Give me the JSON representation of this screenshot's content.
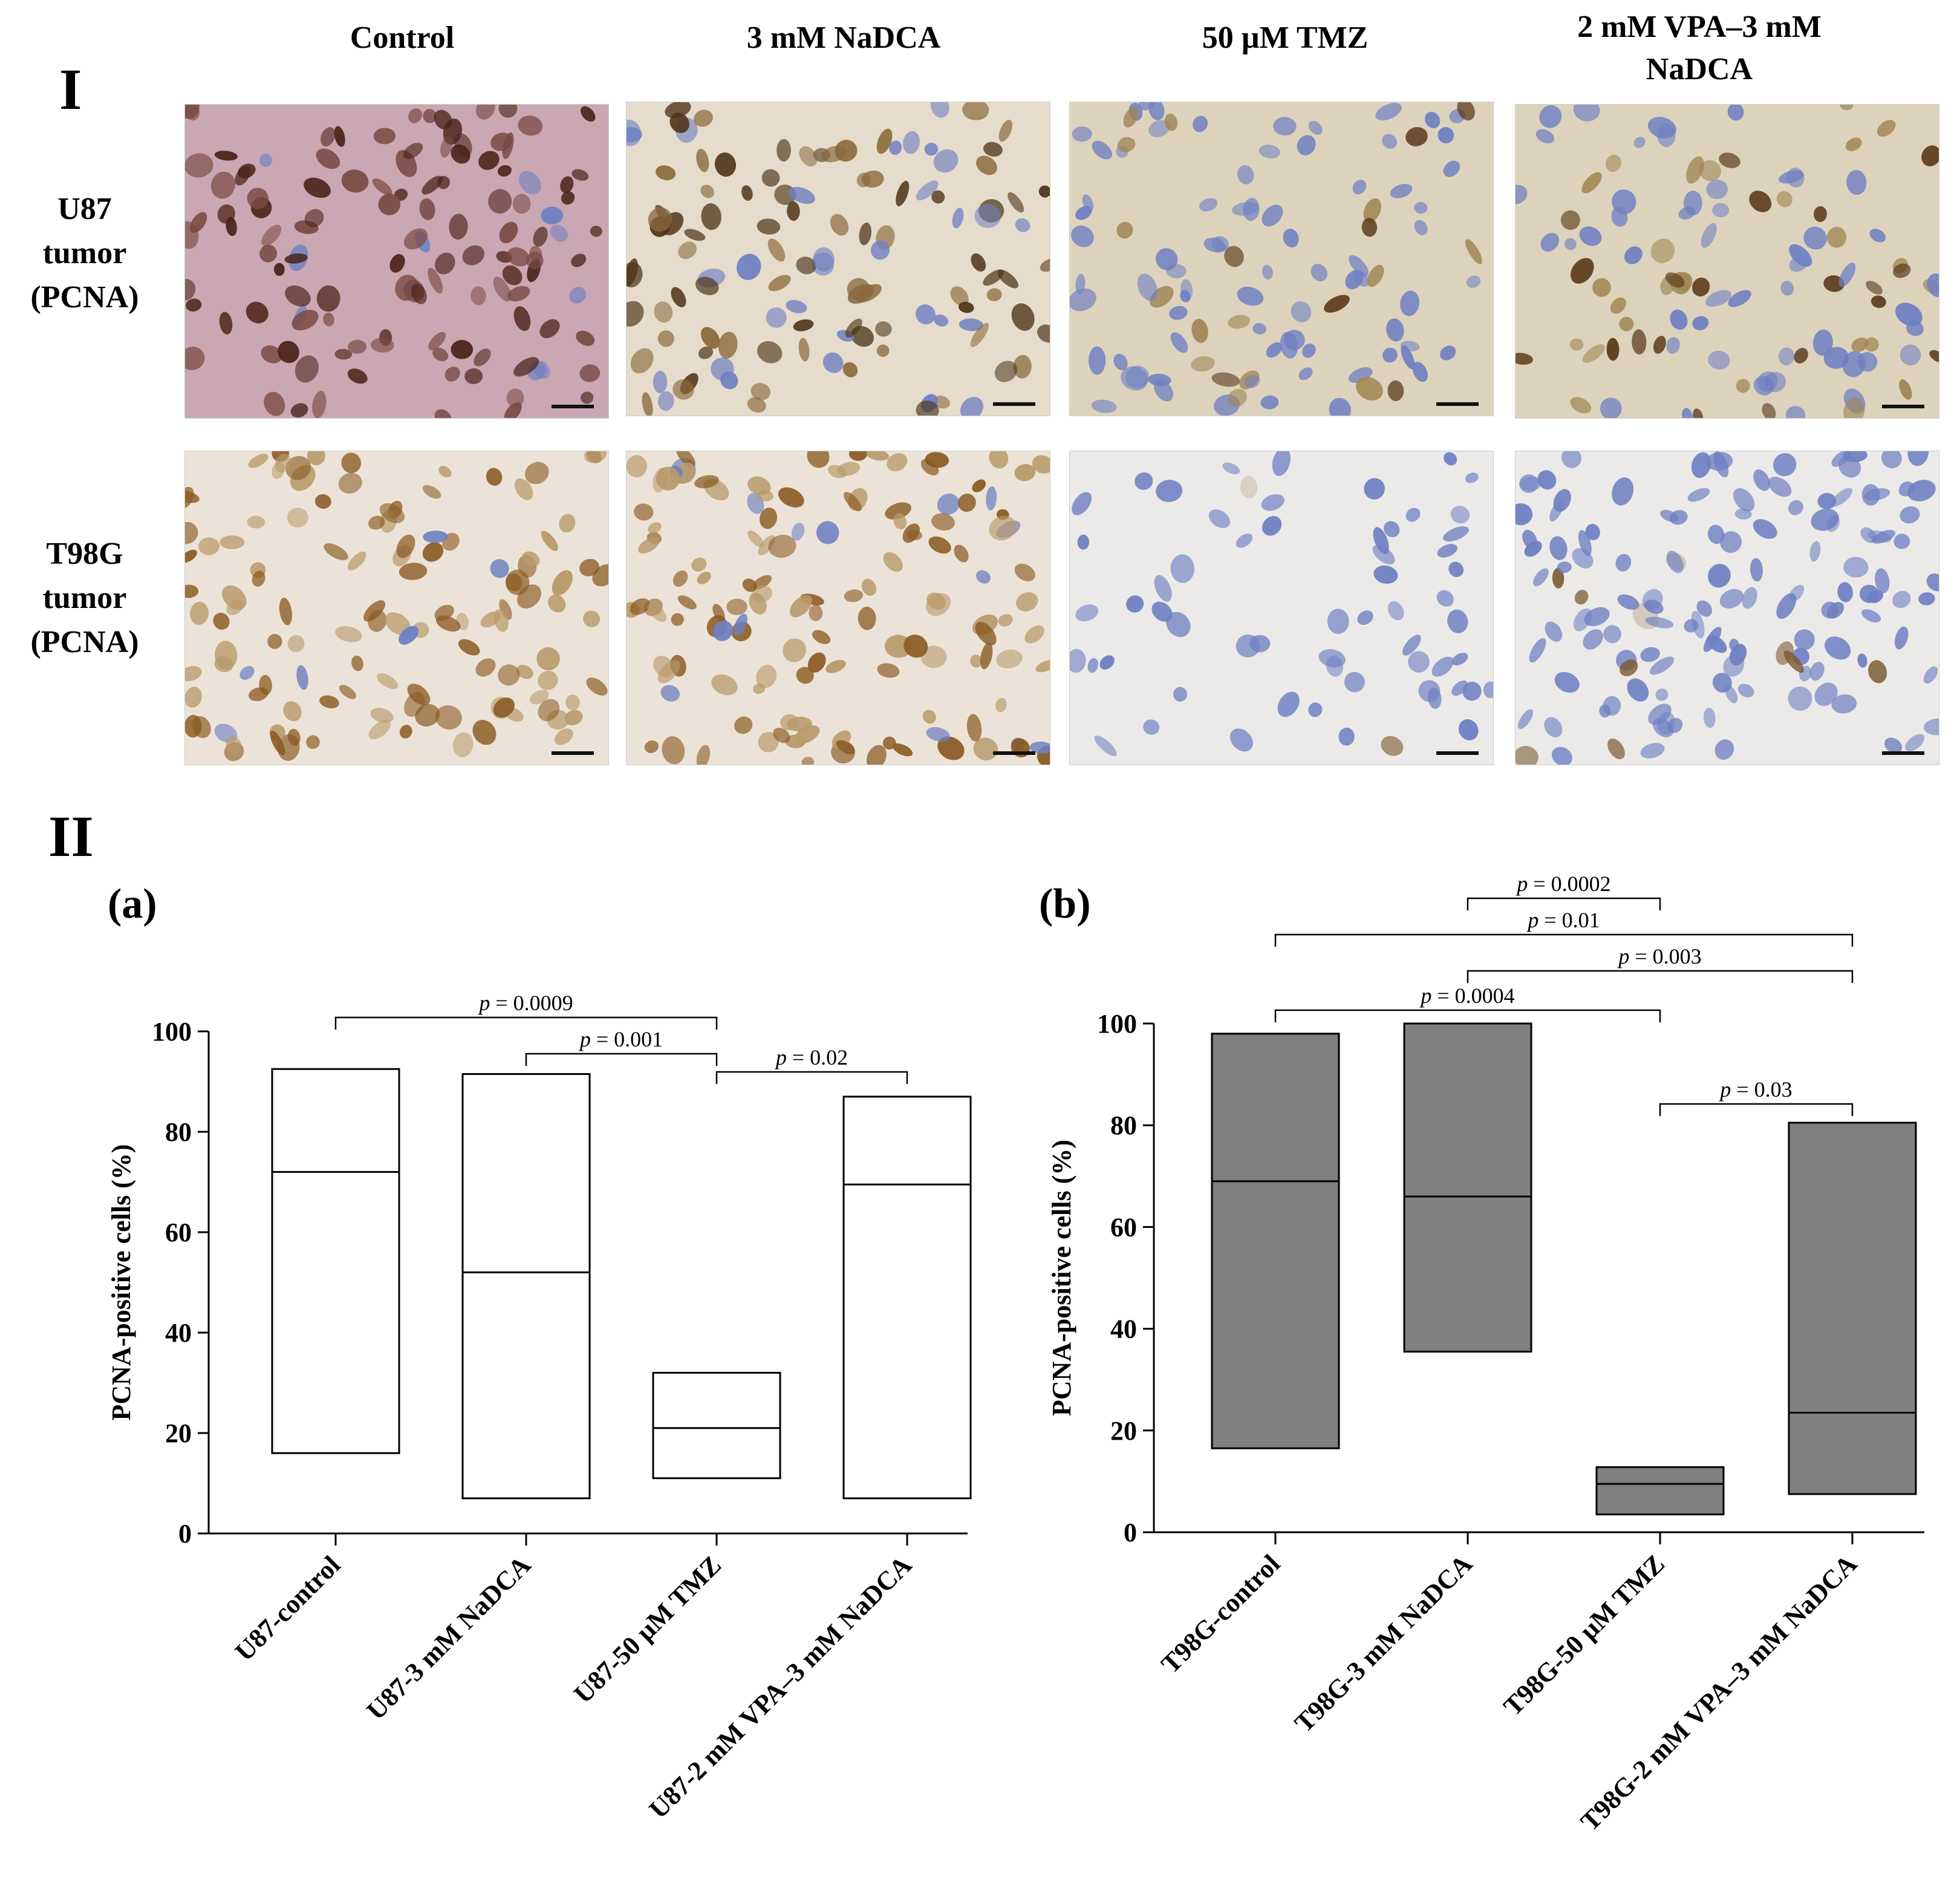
{
  "figure": {
    "section_I": "I",
    "section_II": "II",
    "column_headers": [
      "Control",
      "3 mM NaDCA",
      "50 µM TMZ",
      "2 mM VPA–3 mM NaDCA"
    ],
    "row_labels": [
      {
        "line1": "U87",
        "line2": "tumor",
        "line3": "(PCNA)"
      },
      {
        "line1": "T98G",
        "line2": "tumor",
        "line3": "(PCNA)"
      }
    ],
    "colors": {
      "u87_tissue_bg": "#c9a7b3",
      "u87_nuclei": "#4a2418",
      "t98g_tissue_bg": "#ece3d8",
      "t98g_nuclei": "#8a5a22",
      "hematoxylin_blue": "#6e7fc2",
      "box_fill_a": "#ffffff",
      "box_fill_b": "#808080"
    }
  },
  "chart_data": [
    {
      "panel_label": "(a)",
      "type": "box",
      "fill": "#ffffff",
      "ylabel": "PCNA-positive cells (%)",
      "ylim": [
        0,
        100
      ],
      "yticks": [
        "0",
        "20",
        "40",
        "60",
        "80",
        "100"
      ],
      "categories": [
        "U87-control",
        "U87-3 mM NaDCA",
        "U87-50 µM TMZ",
        "U87-2 mM VPA–3 mM NaDCA"
      ],
      "boxes": [
        {
          "min": 16,
          "median": 72,
          "max": 92.5
        },
        {
          "min": 7,
          "median": 52,
          "max": 91.5
        },
        {
          "min": 11,
          "median": 21,
          "max": 32
        },
        {
          "min": 7,
          "median": 69.5,
          "max": 87
        }
      ],
      "comparisons": [
        {
          "from": 0,
          "to": 2,
          "text_p": "p",
          "text_val": " = 0.0009"
        },
        {
          "from": 1,
          "to": 2,
          "text_p": "p",
          "text_val": " = 0.001"
        },
        {
          "from": 2,
          "to": 3,
          "text_p": "p",
          "text_val": " = 0.02"
        }
      ]
    },
    {
      "panel_label": "(b)",
      "type": "box",
      "fill": "#808080",
      "ylabel": "PCNA-positive cells (%)",
      "ylim": [
        0,
        100
      ],
      "yticks": [
        "0",
        "20",
        "40",
        "60",
        "80",
        "100"
      ],
      "categories": [
        "T98G-control",
        "T98G-3 mM NaDCA",
        "T98G-50 µM TMZ",
        "T98G-2 mM VPA–3 mM NaDCA"
      ],
      "boxes": [
        {
          "min": 16.5,
          "median": 69,
          "max": 98
        },
        {
          "min": 35.5,
          "median": 66,
          "max": 100
        },
        {
          "min": 3.5,
          "median": 9.5,
          "max": 12.8
        },
        {
          "min": 7.5,
          "median": 23.5,
          "max": 80.5
        }
      ],
      "comparisons": [
        {
          "from": 1,
          "to": 2,
          "text_p": "p",
          "text_val": " = 0.0002"
        },
        {
          "from": 0,
          "to": 3,
          "text_p": "p",
          "text_val": " = 0.01"
        },
        {
          "from": 1,
          "to": 3,
          "text_p": "p",
          "text_val": " = 0.003"
        },
        {
          "from": 0,
          "to": 2,
          "text_p": "p",
          "text_val": " = 0.0004"
        },
        {
          "from": 2,
          "to": 3,
          "text_p": "p",
          "text_val": " = 0.03"
        }
      ]
    }
  ]
}
